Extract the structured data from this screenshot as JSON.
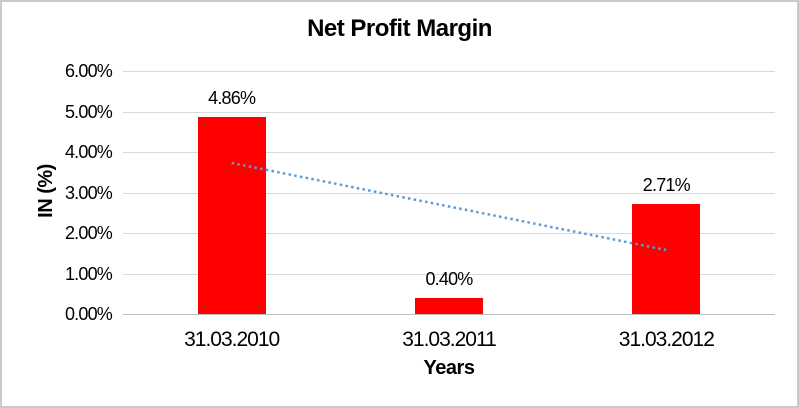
{
  "chart_data": {
    "type": "bar",
    "title": "Net Profit Margin",
    "xlabel": "Years",
    "ylabel": "IN (%)",
    "categories": [
      "31.03.2010",
      "31.03.2011",
      "31.03.2012"
    ],
    "values": [
      4.86,
      0.4,
      2.71
    ],
    "data_labels": [
      "4.86%",
      "0.40%",
      "2.71%"
    ],
    "y_ticks": [
      "6.00%",
      "5.00%",
      "4.00%",
      "3.00%",
      "2.00%",
      "1.00%",
      "0.00%"
    ],
    "ylim": [
      0,
      6
    ],
    "grid": true,
    "legend_position": "none",
    "bar_color": "#FF0000",
    "gridline_color": "#D9D9D9",
    "axis_line_color": "#BFBFBF",
    "text_color": "#000000",
    "trendline": {
      "type": "linear",
      "style": "dotted",
      "color": "#5B9BD5",
      "start_value": 3.73,
      "end_value": 1.58
    }
  }
}
